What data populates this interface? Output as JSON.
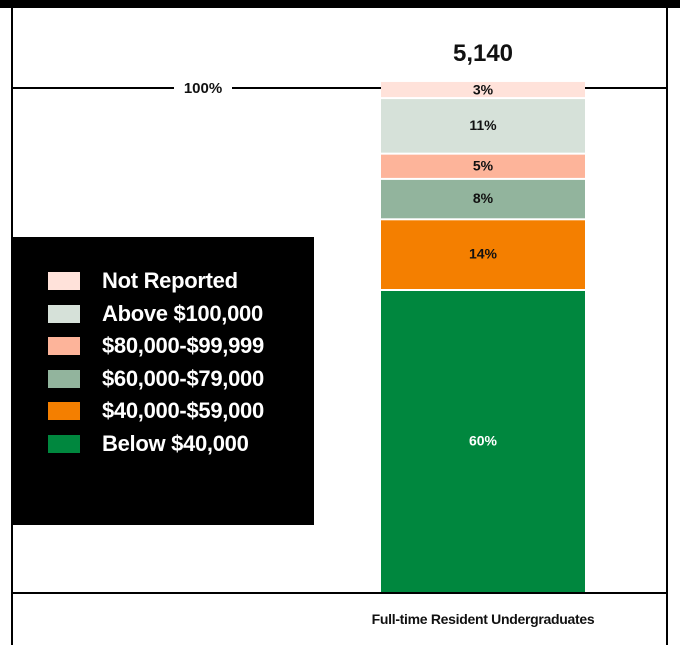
{
  "chart_data": {
    "type": "bar",
    "stacked": true,
    "categories": [
      "Full-time Resident Undergraduates"
    ],
    "total_label": "5,140",
    "reference_label": "100%",
    "legend_placement": "left",
    "series": [
      {
        "name": "Below $40,000",
        "values": [
          60
        ],
        "label": "60%",
        "color": "#00873E",
        "label_color": "#ffffff"
      },
      {
        "name": "$40,000-$59,000",
        "values": [
          14
        ],
        "label": "14%",
        "color": "#F47F00",
        "label_color": "#111111"
      },
      {
        "name": "$60,000-$79,000",
        "values": [
          8
        ],
        "label": "8%",
        "color": "#92B49D",
        "label_color": "#111111"
      },
      {
        "name": "$80,000-$99,999",
        "values": [
          5
        ],
        "label": "5%",
        "color": "#FDB49A",
        "label_color": "#111111"
      },
      {
        "name": "Above $100,000",
        "values": [
          11
        ],
        "label": "11%",
        "color": "#D6E1D9",
        "label_color": "#111111"
      },
      {
        "name": "Not Reported",
        "values": [
          3
        ],
        "label": "3%",
        "color": "#FFE2DA",
        "label_color": "#111111"
      }
    ],
    "legend": [
      "Not Reported",
      "Above $100,000",
      "$80,000-$99,999",
      "$60,000-$79,000",
      "$40,000-$59,000",
      "Below $40,000"
    ],
    "ylim": [
      0,
      100
    ]
  }
}
